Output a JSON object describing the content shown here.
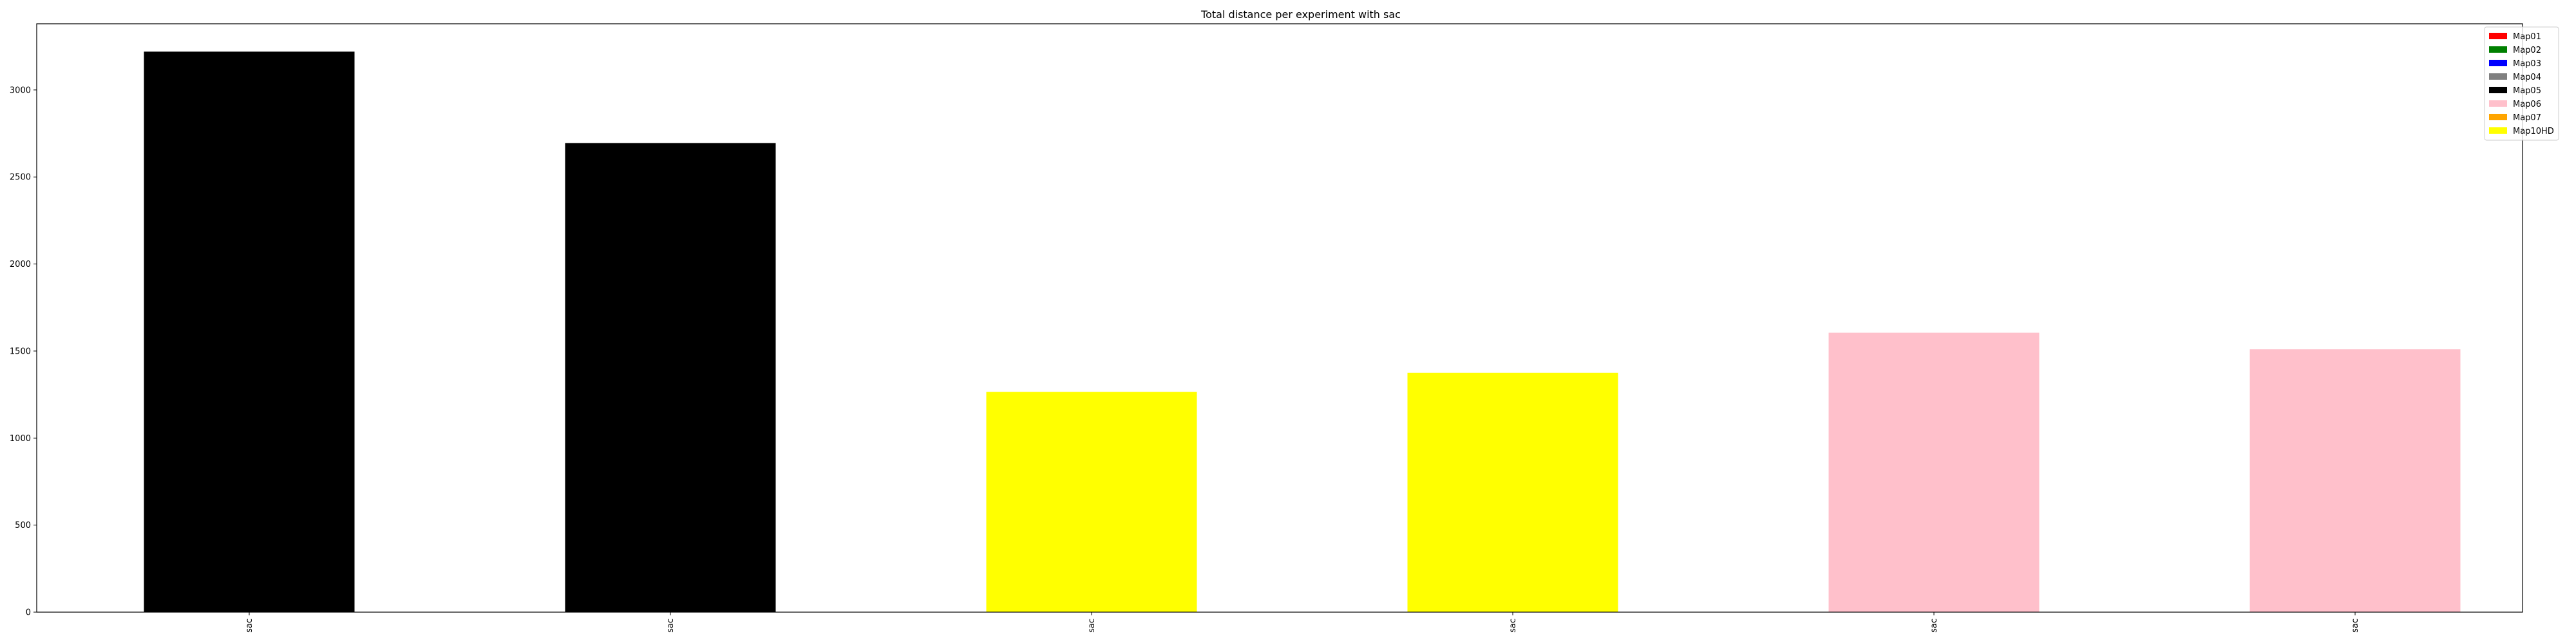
{
  "chart_data": {
    "type": "bar",
    "title": "Total distance per experiment with sac",
    "xlabel": "",
    "ylabel": "",
    "categories": [
      "sac",
      "sac",
      "sac",
      "sac",
      "sac",
      "sac"
    ],
    "values": [
      3220,
      2695,
      1265,
      1375,
      1605,
      1510
    ],
    "bar_colors": [
      "#000000",
      "#000000",
      "#ffff00",
      "#ffff00",
      "#ffc0cb",
      "#ffc0cb"
    ],
    "ylim": [
      0,
      3380
    ],
    "yticks": [
      0,
      500,
      1000,
      1500,
      2000,
      2500,
      3000
    ],
    "grid": false,
    "legend_position": "top-right",
    "legend": [
      {
        "label": "Map01",
        "color": "#ff0000"
      },
      {
        "label": "Map02",
        "color": "#008000"
      },
      {
        "label": "Map03",
        "color": "#0000ff"
      },
      {
        "label": "Map04",
        "color": "#808080"
      },
      {
        "label": "Map05",
        "color": "#000000"
      },
      {
        "label": "Map06",
        "color": "#ffc0cb"
      },
      {
        "label": "Map07",
        "color": "#ffa500"
      },
      {
        "label": "Map10HD",
        "color": "#ffff00"
      }
    ]
  }
}
